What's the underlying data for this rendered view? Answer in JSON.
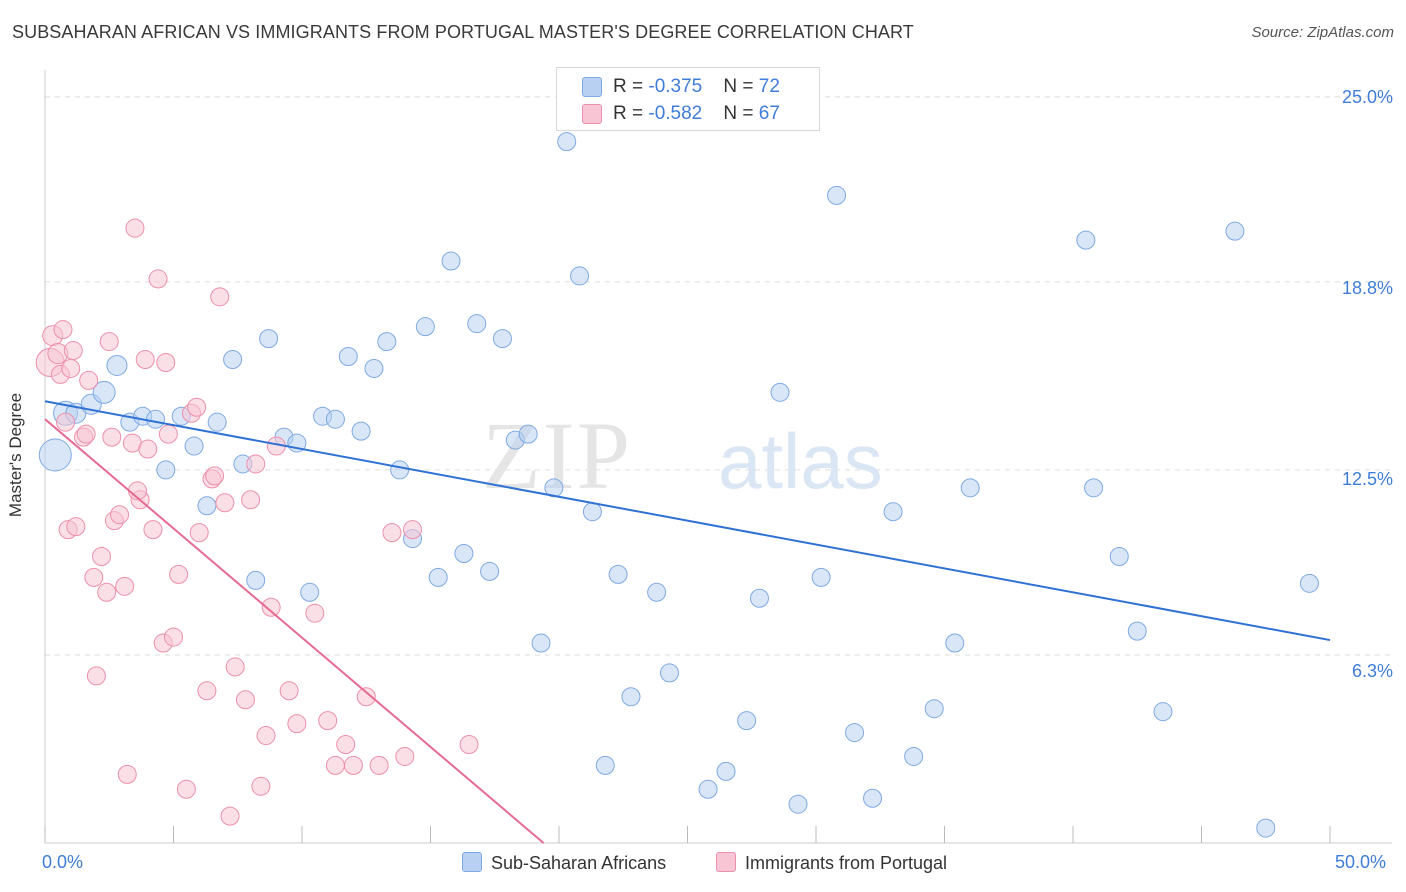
{
  "title": "SUBSAHARAN AFRICAN VS IMMIGRANTS FROM PORTUGAL MASTER'S DEGREE CORRELATION CHART",
  "source": "Source: ZipAtlas.com",
  "watermark": {
    "zip": "ZIP",
    "atlas": "atlas"
  },
  "colors": {
    "blue_fill": "#b8d1f3",
    "blue_stroke": "#7fa9e3",
    "blue_line": "#2f72d4",
    "pink_fill": "#f7c5d4",
    "pink_stroke": "#ec8fac",
    "pink_line": "#e56b92",
    "tick_text": "#3f7dd8"
  },
  "legend_top": {
    "rows": [
      {
        "r_label": "R = ",
        "r_value": "-0.375",
        "n_label": "N = ",
        "n_value": "72"
      },
      {
        "r_label": "R = ",
        "r_value": "-0.582",
        "n_label": "N = ",
        "n_value": "67"
      }
    ]
  },
  "legend_bottom": {
    "series1": "Sub-Saharan Africans",
    "series2": "Immigrants from Portugal"
  },
  "axes": {
    "ylabel": "Master's Degree",
    "x_min_label": "0.0%",
    "x_max_label": "50.0%",
    "y_ticks": [
      "25.0%",
      "18.8%",
      "12.5%",
      "6.3%"
    ]
  },
  "chart_data": {
    "type": "scatter",
    "xlim": [
      0,
      50
    ],
    "ylim": [
      0,
      25.9
    ],
    "y_tick_values": [
      25.0,
      18.8,
      12.5,
      6.3
    ],
    "x_tick_values": [
      0,
      5,
      10,
      15,
      20,
      25,
      30,
      35,
      40,
      45,
      50
    ],
    "grid": "horizontal dashed",
    "series": [
      {
        "name": "Sub-Saharan Africans",
        "R": -0.375,
        "N": 72,
        "trend": [
          [
            0,
            14.8
          ],
          [
            50,
            6.8
          ]
        ],
        "points": [
          [
            0.4,
            13.0,
            16
          ],
          [
            0.8,
            14.4,
            12
          ],
          [
            1.2,
            14.4,
            10
          ],
          [
            1.8,
            14.7,
            10
          ],
          [
            2.3,
            15.1,
            11
          ],
          [
            2.8,
            16.0,
            10
          ],
          [
            3.3,
            14.1,
            9
          ],
          [
            3.8,
            14.3,
            9
          ],
          [
            4.3,
            14.2,
            9
          ],
          [
            4.7,
            12.5,
            9
          ],
          [
            5.3,
            14.3,
            9
          ],
          [
            5.8,
            13.3,
            9
          ],
          [
            6.3,
            11.3,
            9
          ],
          [
            6.7,
            14.1,
            9
          ],
          [
            7.3,
            16.2,
            9
          ],
          [
            7.7,
            12.7,
            9
          ],
          [
            8.2,
            8.8,
            9
          ],
          [
            8.7,
            16.9,
            9
          ],
          [
            9.3,
            13.6,
            9
          ],
          [
            9.8,
            13.4,
            9
          ],
          [
            10.3,
            8.4,
            9
          ],
          [
            10.8,
            14.3,
            9
          ],
          [
            11.3,
            14.2,
            9
          ],
          [
            11.8,
            16.3,
            9
          ],
          [
            12.3,
            13.8,
            9
          ],
          [
            12.8,
            15.9,
            9
          ],
          [
            13.3,
            16.8,
            9
          ],
          [
            13.8,
            12.5,
            9
          ],
          [
            14.3,
            10.2,
            9
          ],
          [
            14.8,
            17.3,
            9
          ],
          [
            15.3,
            8.9,
            9
          ],
          [
            15.8,
            19.5,
            9
          ],
          [
            16.3,
            9.7,
            9
          ],
          [
            16.8,
            17.4,
            9
          ],
          [
            17.3,
            9.1,
            9
          ],
          [
            17.8,
            16.9,
            9
          ],
          [
            18.3,
            13.5,
            9
          ],
          [
            18.8,
            13.7,
            9
          ],
          [
            19.3,
            6.7,
            9
          ],
          [
            19.8,
            11.9,
            9
          ],
          [
            20.3,
            23.5,
            9
          ],
          [
            20.8,
            19.0,
            9
          ],
          [
            21.3,
            11.1,
            9
          ],
          [
            21.8,
            2.6,
            9
          ],
          [
            22.3,
            9.0,
            9
          ],
          [
            22.8,
            4.9,
            9
          ],
          [
            23.8,
            8.4,
            9
          ],
          [
            24.3,
            5.7,
            9
          ],
          [
            25.8,
            1.8,
            9
          ],
          [
            26.5,
            2.4,
            9
          ],
          [
            27.3,
            4.1,
            9
          ],
          [
            27.8,
            8.2,
            9
          ],
          [
            28.6,
            15.1,
            9
          ],
          [
            29.3,
            1.3,
            9
          ],
          [
            30.2,
            8.9,
            9
          ],
          [
            30.8,
            21.7,
            9
          ],
          [
            31.5,
            3.7,
            9
          ],
          [
            32.2,
            1.5,
            9
          ],
          [
            33.0,
            11.1,
            9
          ],
          [
            33.8,
            2.9,
            9
          ],
          [
            34.6,
            4.5,
            9
          ],
          [
            35.4,
            6.7,
            9
          ],
          [
            36.0,
            11.9,
            9
          ],
          [
            40.5,
            20.2,
            9
          ],
          [
            40.8,
            11.9,
            9
          ],
          [
            41.8,
            9.6,
            9
          ],
          [
            42.5,
            7.1,
            9
          ],
          [
            43.5,
            4.4,
            9
          ],
          [
            46.3,
            20.5,
            9
          ],
          [
            47.5,
            0.5,
            9
          ],
          [
            49.2,
            8.7,
            9
          ],
          [
            46.0,
            3.9,
            0
          ]
        ]
      },
      {
        "name": "Immigrants from Portugal",
        "R": -0.582,
        "N": 67,
        "trend": [
          [
            0,
            14.2
          ],
          [
            19.4,
            0
          ]
        ],
        "points": [
          [
            0.2,
            16.1,
            14
          ],
          [
            0.3,
            17.0,
            10
          ],
          [
            0.5,
            16.4,
            10
          ],
          [
            0.6,
            15.7,
            9
          ],
          [
            0.8,
            14.1,
            9
          ],
          [
            0.9,
            10.5,
            9
          ],
          [
            1.1,
            16.5,
            9
          ],
          [
            1.2,
            10.6,
            9
          ],
          [
            1.5,
            13.6,
            9
          ],
          [
            1.7,
            15.5,
            9
          ],
          [
            1.9,
            8.9,
            9
          ],
          [
            2.0,
            5.6,
            9
          ],
          [
            2.2,
            9.6,
            9
          ],
          [
            2.4,
            8.4,
            9
          ],
          [
            2.5,
            16.8,
            9
          ],
          [
            2.7,
            10.8,
            9
          ],
          [
            2.9,
            11.0,
            9
          ],
          [
            3.1,
            8.6,
            9
          ],
          [
            3.2,
            2.3,
            9
          ],
          [
            3.4,
            13.4,
            9
          ],
          [
            3.5,
            20.6,
            9
          ],
          [
            3.7,
            11.5,
            9
          ],
          [
            3.9,
            16.2,
            9
          ],
          [
            4.0,
            13.2,
            9
          ],
          [
            4.2,
            10.5,
            9
          ],
          [
            4.4,
            18.9,
            9
          ],
          [
            4.6,
            6.7,
            9
          ],
          [
            4.7,
            16.1,
            9
          ],
          [
            5.0,
            6.9,
            9
          ],
          [
            5.2,
            9.0,
            9
          ],
          [
            5.5,
            1.8,
            9
          ],
          [
            5.7,
            14.4,
            9
          ],
          [
            6.0,
            10.4,
            9
          ],
          [
            6.3,
            5.1,
            9
          ],
          [
            6.5,
            12.2,
            9
          ],
          [
            6.8,
            18.3,
            9
          ],
          [
            7.0,
            11.4,
            9
          ],
          [
            7.2,
            0.9,
            9
          ],
          [
            7.4,
            5.9,
            9
          ],
          [
            7.8,
            4.8,
            9
          ],
          [
            8.0,
            11.5,
            9
          ],
          [
            8.2,
            12.7,
            9
          ],
          [
            8.4,
            1.9,
            9
          ],
          [
            8.6,
            3.6,
            9
          ],
          [
            8.8,
            7.9,
            9
          ],
          [
            9.0,
            13.3,
            9
          ],
          [
            9.5,
            5.1,
            9
          ],
          [
            9.8,
            4.0,
            9
          ],
          [
            10.5,
            7.7,
            9
          ],
          [
            11.0,
            4.1,
            9
          ],
          [
            11.3,
            2.6,
            9
          ],
          [
            11.7,
            3.3,
            9
          ],
          [
            12.0,
            2.6,
            9
          ],
          [
            12.5,
            4.9,
            9
          ],
          [
            13.0,
            2.6,
            9
          ],
          [
            13.5,
            10.4,
            9
          ],
          [
            14.0,
            2.9,
            9
          ],
          [
            14.3,
            10.5,
            9
          ],
          [
            16.5,
            3.3,
            9
          ],
          [
            0.7,
            17.2,
            9
          ],
          [
            1.0,
            15.9,
            9
          ],
          [
            1.6,
            13.7,
            9
          ],
          [
            2.6,
            13.6,
            9
          ],
          [
            3.6,
            11.8,
            9
          ],
          [
            4.8,
            13.7,
            9
          ],
          [
            5.9,
            14.6,
            9
          ],
          [
            6.6,
            12.3,
            9
          ]
        ]
      }
    ]
  }
}
